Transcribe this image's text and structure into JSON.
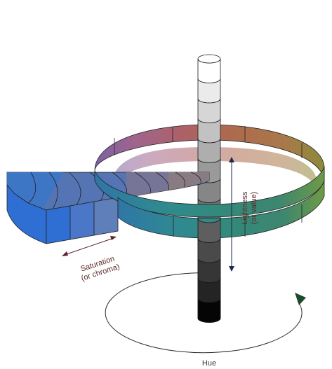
{
  "diagram": {
    "labels": {
      "saturation_line1": "Saturation",
      "saturation_line2": "(or chroma)",
      "lightness_line1": "Lightness",
      "lightness_line2": "(or value)",
      "hue": "Hue"
    },
    "colors": {
      "value_column": [
        "#ffffff",
        "#ebebeb",
        "#d6d6d6",
        "#c2c2c2",
        "#aeaeae",
        "#9a9a9a",
        "#868686",
        "#727272",
        "#5e5e5e",
        "#4a4a4a",
        "#363636",
        "#242424",
        "#050505"
      ],
      "ring_front": [
        "#2f76a6",
        "#2f8a90",
        "#33897a",
        "#3d8670",
        "#6e9a46"
      ],
      "ring_back": [
        "#7b62a4",
        "#a0658c",
        "#ac6168",
        "#ad6a4e",
        "#a9784a",
        "#8d8a3a"
      ],
      "wedge_top": [
        "#3a77c8",
        "#4775be",
        "#5574b3",
        "#6373a9",
        "#70749e",
        "#7b7593",
        "#85798a",
        "#8a7d80"
      ],
      "wedge_front": [
        "#2f6fd3",
        "#4a77c8",
        "#5f7fbb"
      ],
      "saturation_arrow": "#5a1f2a",
      "lightness_arrow": "#1f2a4a",
      "hue_arrowhead": "#1d4a2e"
    }
  }
}
